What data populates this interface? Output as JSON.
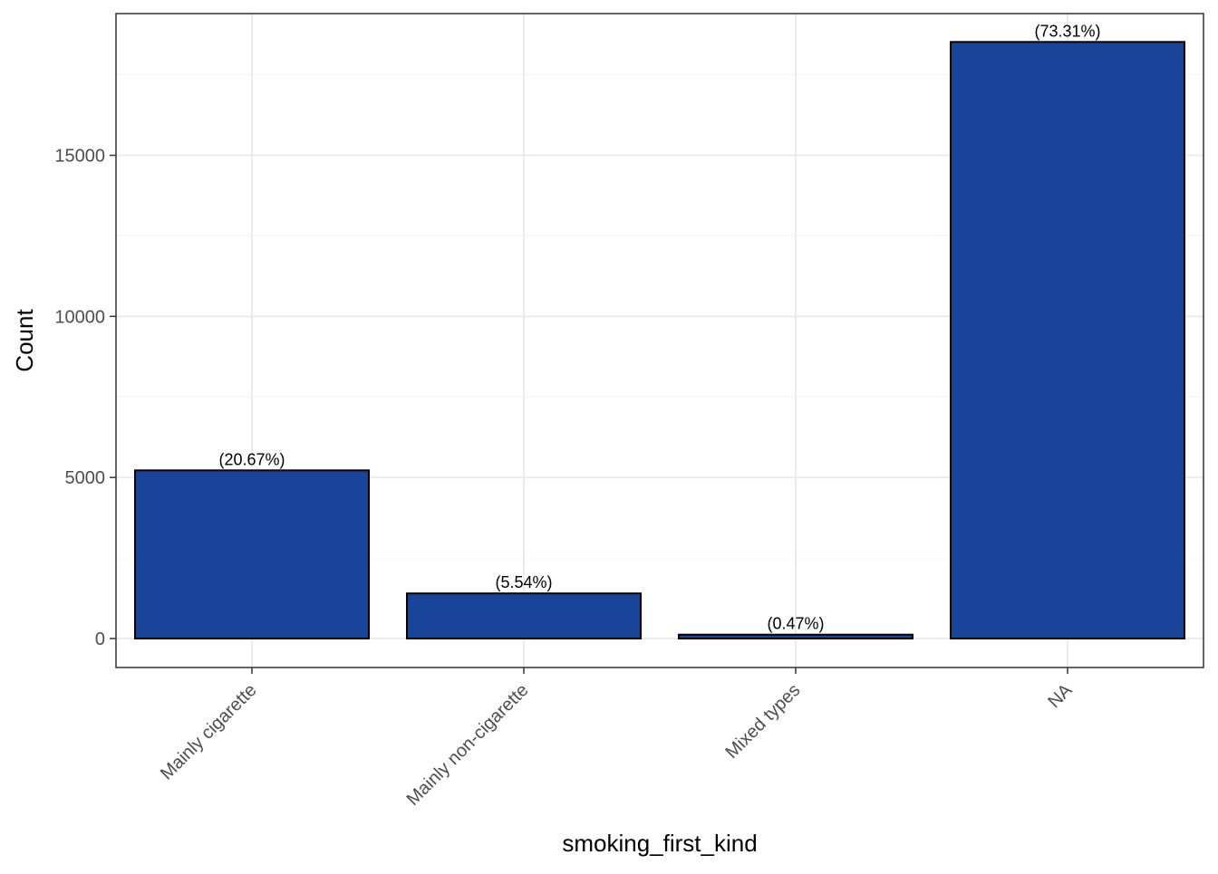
{
  "chart_data": {
    "type": "bar",
    "xlabel": "smoking_first_kind",
    "ylabel": "Count",
    "categories": [
      "Mainly cigarette",
      "Mainly non-cigarette",
      "Mixed types",
      "NA"
    ],
    "values": [
      5220,
      1400,
      120,
      18520
    ],
    "data_labels": [
      "(20.67%)",
      "(5.54%)",
      "(0.47%)",
      "(73.31%)"
    ],
    "ylim": [
      -900,
      19400
    ],
    "yticks": [
      0,
      5000,
      10000,
      15000
    ],
    "ytick_labels": [
      "0",
      "5000",
      "10000",
      "15000"
    ],
    "y_minor_ticks": [
      2500,
      7500,
      12500,
      17500
    ],
    "grid": true,
    "legend": "none",
    "colors": {
      "bar_fill": "#18449A",
      "bar_stroke": "#000000",
      "grid_major": "#EBEBEB",
      "grid_minor": "#F5F5F5",
      "panel_border": "#333333",
      "tick_text": "#4D4D4D"
    }
  }
}
